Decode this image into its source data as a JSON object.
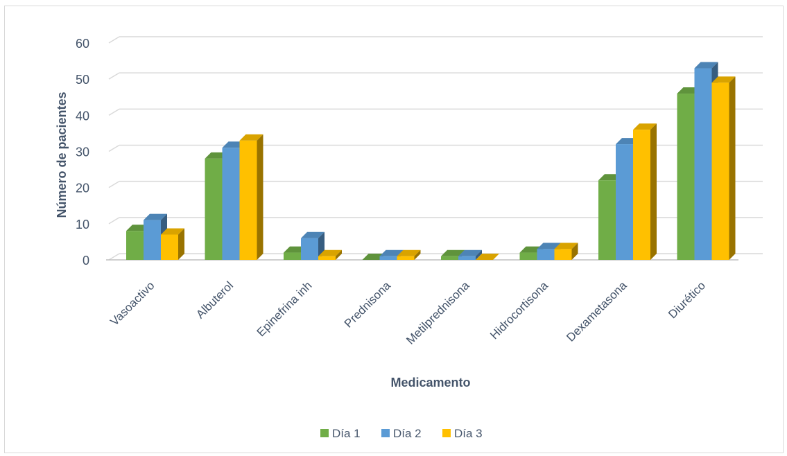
{
  "chart_data": {
    "type": "bar",
    "title": "",
    "xlabel": "Medicamento",
    "ylabel": "Número de pacientes",
    "ylim": [
      0,
      60
    ],
    "yticks": [
      0,
      10,
      20,
      30,
      40,
      50,
      60
    ],
    "grid": true,
    "legend": "bottom",
    "categories": [
      "Vasoactivo",
      "Albuterol",
      "Epinefrina inh",
      "Prednisona",
      "Metilprednisona",
      "Hidrocortisona",
      "Dexametasona",
      "Diurético"
    ],
    "series": [
      {
        "name": "Día 1",
        "color": "#70ad47",
        "values": [
          8,
          28,
          2,
          0,
          1,
          2,
          22,
          46
        ]
      },
      {
        "name": "Día 2",
        "color": "#5b9bd5",
        "values": [
          11,
          31,
          6,
          1,
          1,
          3,
          32,
          53
        ]
      },
      {
        "name": "Día 3",
        "color": "#ffc000",
        "values": [
          7,
          33,
          1,
          1,
          0,
          3,
          36,
          49
        ]
      }
    ]
  }
}
